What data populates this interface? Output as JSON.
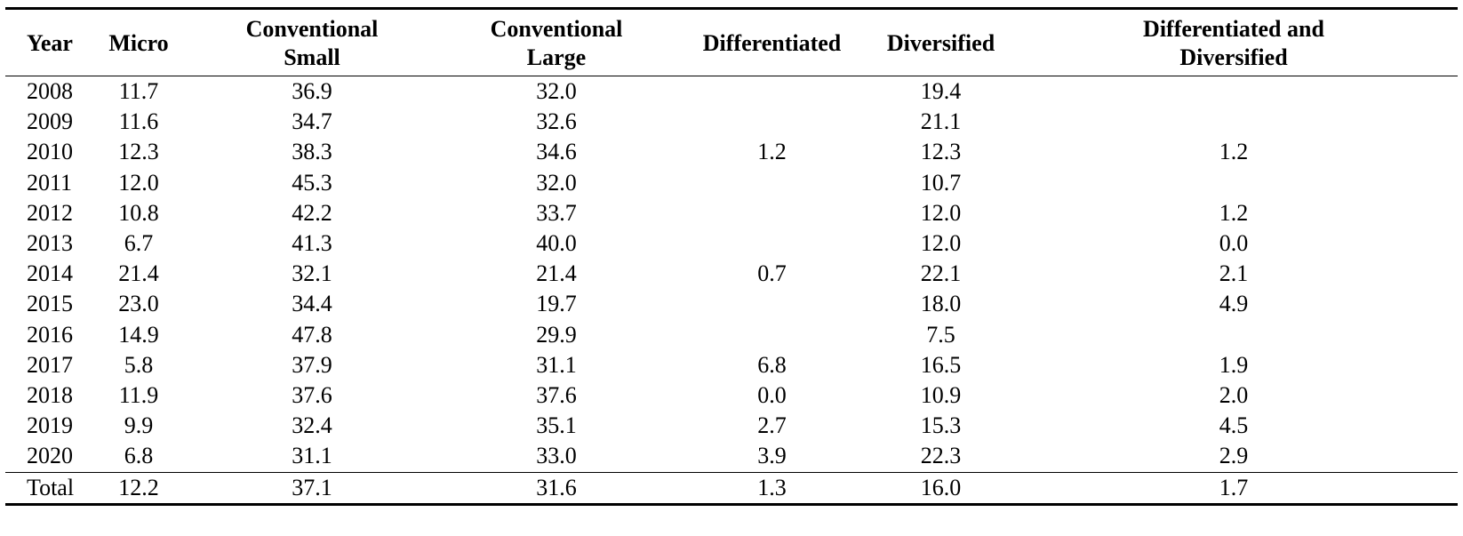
{
  "table": {
    "headers": [
      {
        "key": "year",
        "line1": "Year",
        "line2": ""
      },
      {
        "key": "micro",
        "line1": "Micro",
        "line2": ""
      },
      {
        "key": "conv_small",
        "line1": "Conventional",
        "line2": "Small"
      },
      {
        "key": "conv_large",
        "line1": "Conventional",
        "line2": "Large"
      },
      {
        "key": "differentiated",
        "line1": "Differentiated",
        "line2": ""
      },
      {
        "key": "diversified",
        "line1": "Diversified",
        "line2": ""
      },
      {
        "key": "diff_div",
        "line1": "Differentiated and",
        "line2": "Diversified"
      }
    ],
    "rows": [
      [
        "2008",
        "11.7",
        "36.9",
        "32.0",
        "",
        "19.4",
        ""
      ],
      [
        "2009",
        "11.6",
        "34.7",
        "32.6",
        "",
        "21.1",
        ""
      ],
      [
        "2010",
        "12.3",
        "38.3",
        "34.6",
        "1.2",
        "12.3",
        "1.2"
      ],
      [
        "2011",
        "12.0",
        "45.3",
        "32.0",
        "",
        "10.7",
        ""
      ],
      [
        "2012",
        "10.8",
        "42.2",
        "33.7",
        "",
        "12.0",
        "1.2"
      ],
      [
        "2013",
        "6.7",
        "41.3",
        "40.0",
        "",
        "12.0",
        "0.0"
      ],
      [
        "2014",
        "21.4",
        "32.1",
        "21.4",
        "0.7",
        "22.1",
        "2.1"
      ],
      [
        "2015",
        "23.0",
        "34.4",
        "19.7",
        "",
        "18.0",
        "4.9"
      ],
      [
        "2016",
        "14.9",
        "47.8",
        "29.9",
        "",
        "7.5",
        ""
      ],
      [
        "2017",
        "5.8",
        "37.9",
        "31.1",
        "6.8",
        "16.5",
        "1.9"
      ],
      [
        "2018",
        "11.9",
        "37.6",
        "37.6",
        "0.0",
        "10.9",
        "2.0"
      ],
      [
        "2019",
        "9.9",
        "32.4",
        "35.1",
        "2.7",
        "15.3",
        "4.5"
      ],
      [
        "2020",
        "6.8",
        "31.1",
        "33.0",
        "3.9",
        "22.3",
        "2.9"
      ]
    ],
    "total": [
      "Total",
      "12.2",
      "37.1",
      "31.6",
      "1.3",
      "16.0",
      "1.7"
    ]
  }
}
